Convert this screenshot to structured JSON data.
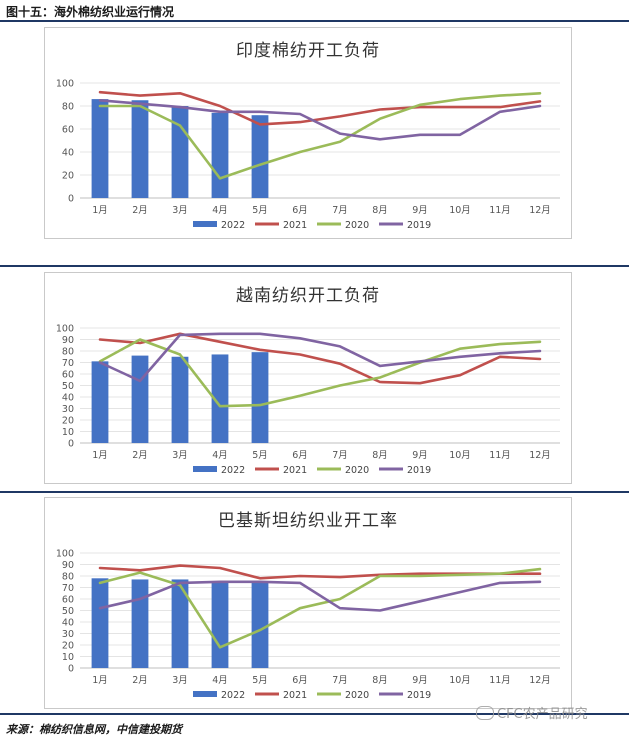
{
  "figure_title": "图十五：海外棉纺织业运行情况",
  "source": "来源：棉纺织信息网，中信建投期货",
  "watermark": "CFC农产品研究",
  "colors": {
    "2022": "#4472c4",
    "2021": "#c0504d",
    "2020": "#9bbb59",
    "2019": "#8064a2"
  },
  "chart_data": [
    {
      "type": "bar+line",
      "title": "印度棉纺开工负荷",
      "categories": [
        "1月",
        "2月",
        "3月",
        "4月",
        "5月",
        "6月",
        "7月",
        "8月",
        "9月",
        "10月",
        "11月",
        "12月"
      ],
      "ylim": [
        0,
        100
      ],
      "yticks": [
        0,
        20,
        40,
        60,
        80,
        100
      ],
      "legend": "bottom",
      "series": [
        {
          "name": "2022",
          "type": "bar",
          "values": [
            86,
            85,
            80,
            74,
            72,
            null,
            null,
            null,
            null,
            null,
            null,
            null
          ]
        },
        {
          "name": "2021",
          "type": "line",
          "values": [
            92,
            89,
            91,
            80,
            64,
            66,
            71,
            77,
            79,
            79,
            79,
            84
          ]
        },
        {
          "name": "2020",
          "type": "line",
          "values": [
            80,
            80,
            63,
            17,
            29,
            40,
            49,
            69,
            81,
            86,
            89,
            91
          ]
        },
        {
          "name": "2019",
          "type": "line",
          "values": [
            85,
            82,
            79,
            75,
            75,
            73,
            56,
            51,
            55,
            55,
            75,
            80
          ]
        }
      ]
    },
    {
      "type": "bar+line",
      "title": "越南纺织开工负荷",
      "categories": [
        "1月",
        "2月",
        "3月",
        "4月",
        "5月",
        "6月",
        "7月",
        "8月",
        "9月",
        "10月",
        "11月",
        "12月"
      ],
      "ylim": [
        0,
        100
      ],
      "yticks": [
        0,
        10,
        20,
        30,
        40,
        50,
        60,
        70,
        80,
        90,
        100
      ],
      "legend": "bottom",
      "series": [
        {
          "name": "2022",
          "type": "bar",
          "values": [
            71,
            76,
            75,
            77,
            79,
            null,
            null,
            null,
            null,
            null,
            null,
            null
          ]
        },
        {
          "name": "2021",
          "type": "line",
          "values": [
            90,
            87,
            95,
            88,
            81,
            77,
            69,
            53,
            52,
            59,
            75,
            73
          ]
        },
        {
          "name": "2020",
          "type": "line",
          "values": [
            71,
            90,
            77,
            32,
            33,
            41,
            50,
            57,
            70,
            82,
            86,
            88
          ]
        },
        {
          "name": "2019",
          "type": "line",
          "values": [
            70,
            54,
            94,
            95,
            95,
            91,
            84,
            67,
            71,
            75,
            78,
            80
          ]
        }
      ]
    },
    {
      "type": "bar+line",
      "title": "巴基斯坦纺织业开工率",
      "categories": [
        "1月",
        "2月",
        "3月",
        "4月",
        "5月",
        "6月",
        "7月",
        "8月",
        "9月",
        "10月",
        "11月",
        "12月"
      ],
      "ylim": [
        0,
        100
      ],
      "yticks": [
        0,
        10,
        20,
        30,
        40,
        50,
        60,
        70,
        80,
        90,
        100
      ],
      "legend": "bottom",
      "series": [
        {
          "name": "2022",
          "type": "bar",
          "values": [
            78,
            77,
            77,
            75,
            75,
            null,
            null,
            null,
            null,
            null,
            null,
            null
          ]
        },
        {
          "name": "2021",
          "type": "line",
          "values": [
            87,
            85,
            89,
            87,
            78,
            80,
            79,
            81,
            82,
            82,
            82,
            82
          ]
        },
        {
          "name": "2020",
          "type": "line",
          "values": [
            74,
            83,
            72,
            18,
            33,
            52,
            60,
            80,
            80,
            81,
            82,
            86
          ]
        },
        {
          "name": "2019",
          "type": "line",
          "values": [
            52,
            60,
            74,
            75,
            75,
            74,
            52,
            50,
            58,
            66,
            74,
            75
          ]
        }
      ]
    }
  ]
}
